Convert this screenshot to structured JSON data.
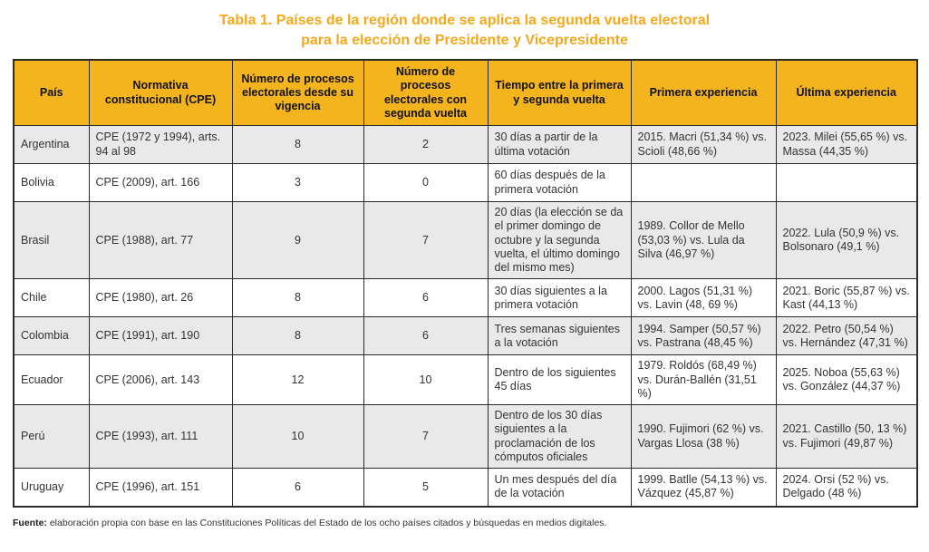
{
  "title": {
    "line1": "Tabla 1. Países de la región donde se aplica la segunda vuelta electoral",
    "line2": "para la elección de Presidente y Vicepresidente"
  },
  "table": {
    "headers": [
      "País",
      "Normativa constitucional (CPE)",
      "Número de procesos electorales desde su vigencia",
      "Número de procesos electorales con segunda vuelta",
      "Tiempo entre la primera y segunda vuelta",
      "Primera experiencia",
      "Última experiencia"
    ],
    "rows": [
      [
        "Argentina",
        "CPE (1972 y 1994), arts. 94 al 98",
        "8",
        "2",
        "30 días a partir de la última votación",
        "2015. Macri (51,34 %) vs. Scioli (48,66 %)",
        "2023. Milei (55,65 %) vs. Massa (44,35 %)"
      ],
      [
        "Bolivia",
        "CPE (2009), art. 166",
        "3",
        "0",
        "60 días después de la primera votación",
        "",
        ""
      ],
      [
        "Brasil",
        "CPE (1988), art. 77",
        "9",
        "7",
        "20 días (la elección se da el primer domingo de octubre y la segunda vuelta, el último domingo del mismo mes)",
        "1989. Collor de Mello (53,03 %) vs. Lula da Silva (46,97 %)",
        "2022. Lula (50,9 %) vs. Bolsonaro (49,1 %)"
      ],
      [
        "Chile",
        "CPE (1980), art. 26",
        "8",
        "6",
        "30 días siguientes a la primera votación",
        "2000. Lagos (51,31 %) vs. Lavin (48, 69 %)",
        "2021. Boric (55,87 %) vs. Kast (44,13 %)"
      ],
      [
        "Colombia",
        "CPE (1991), art. 190",
        "8",
        "6",
        "Tres semanas siguientes a la votación",
        "1994. Samper (50,57 %) vs. Pastrana (48,45 %)",
        "2022. Petro (50,54 %) vs. Hernández (47,31 %)"
      ],
      [
        "Ecuador",
        "CPE (2006), art. 143",
        "12",
        "10",
        "Dentro de los siguientes 45 días",
        "1979. Roldós (68,49 %) vs. Durán-Ballén (31,51 %)",
        "2025. Noboa (55,63 %) vs. González (44,37 %)"
      ],
      [
        "Perú",
        "CPE (1993), art. 111",
        "10",
        "7",
        "Dentro de los 30 días siguientes a la proclamación de los cómputos oficiales",
        "1990. Fujimori (62 %) vs. Vargas Llosa (38 %)",
        "2021. Castillo (50, 13 %) vs. Fujimori (49,87 %)"
      ],
      [
        "Uruguay",
        "CPE (1996), art. 151",
        "6",
        "5",
        "Un mes después del día de la votación",
        "1999. Batlle (54,13 %) vs. Vázquez (45,87 %)",
        "2024. Orsi (52 %) vs. Delgado (48 %)"
      ]
    ]
  },
  "footer": {
    "label": "Fuente:",
    "text": " elaboración propia con base en las Constituciones Políticas del Estado de los ocho países citados y búsquedas en medios digitales."
  },
  "colors": {
    "header_bg": "#f4b41e",
    "title_text": "#f6a81c",
    "row_alt_bg": "#e9e9e9",
    "row_bg": "#ffffff",
    "border": "#2b2b2b",
    "body_text": "#333333"
  }
}
